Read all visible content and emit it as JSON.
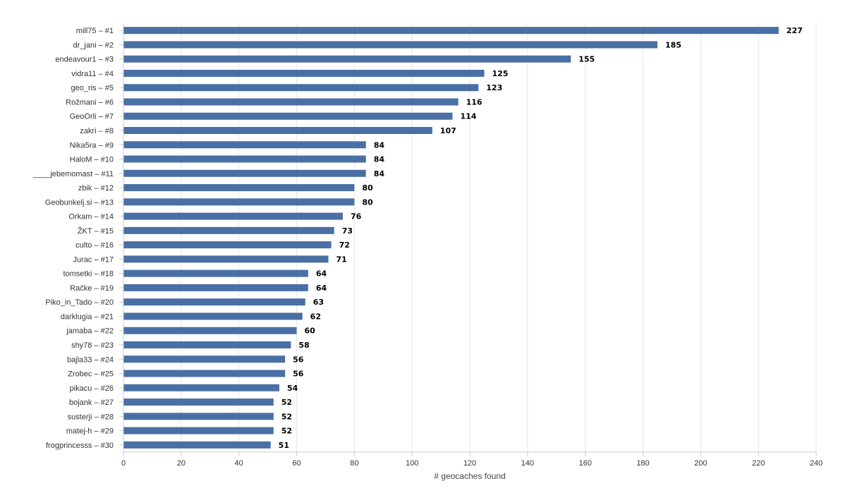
{
  "chart_data": {
    "type": "bar",
    "orientation": "horizontal",
    "categories": [
      "mill75 – #1",
      "dr_jani – #2",
      "endeavour1 – #3",
      "vidra11 – #4",
      "geo_ris – #5",
      "Rožmani – #6",
      "GeoOrli – #7",
      "zakri – #8",
      "Nika5ra – #9",
      "HaloM – #10",
      "____jebemomast – #11",
      "zbik – #12",
      "Geobunkelj.si – #13",
      "Orkam – #14",
      "ŽKT – #15",
      "culto – #16",
      "Jurac – #17",
      "tomsetki – #18",
      "Račke – #19",
      "Piko_in_Tado – #20",
      "darklugia – #21",
      "jamaba – #22",
      "shy78 – #23",
      "bajla33 – #24",
      "Zrobec – #25",
      "pikacu – #26",
      "bojank – #27",
      "susterji – #28",
      "matej-h – #29",
      "frogprincesss – #30"
    ],
    "values": [
      227,
      185,
      155,
      125,
      123,
      116,
      114,
      107,
      84,
      84,
      84,
      80,
      80,
      76,
      73,
      72,
      71,
      64,
      64,
      63,
      62,
      60,
      58,
      56,
      56,
      54,
      52,
      52,
      52,
      51
    ],
    "data_labels": [
      "227",
      "185",
      "155",
      "125",
      "123",
      "116",
      "114",
      "107",
      "84",
      "84",
      "84",
      "80",
      "80",
      "76",
      "73",
      "72",
      "71",
      "64",
      "64",
      "63",
      "62",
      "60",
      "58",
      "56",
      "56",
      "54",
      "52",
      "52",
      "52",
      "51"
    ],
    "x_ticks": [
      "0",
      "20",
      "40",
      "60",
      "80",
      "100",
      "120",
      "140",
      "160",
      "180",
      "200",
      "220",
      "240"
    ],
    "xlim": [
      0,
      240
    ],
    "xlabel": "# geocaches found",
    "ylabel": "",
    "title": "",
    "grid": true,
    "legend": "none",
    "colors": {
      "bar": "#4a6fa5",
      "grid": "#e6e6e6",
      "axis": "#cccccc"
    }
  }
}
